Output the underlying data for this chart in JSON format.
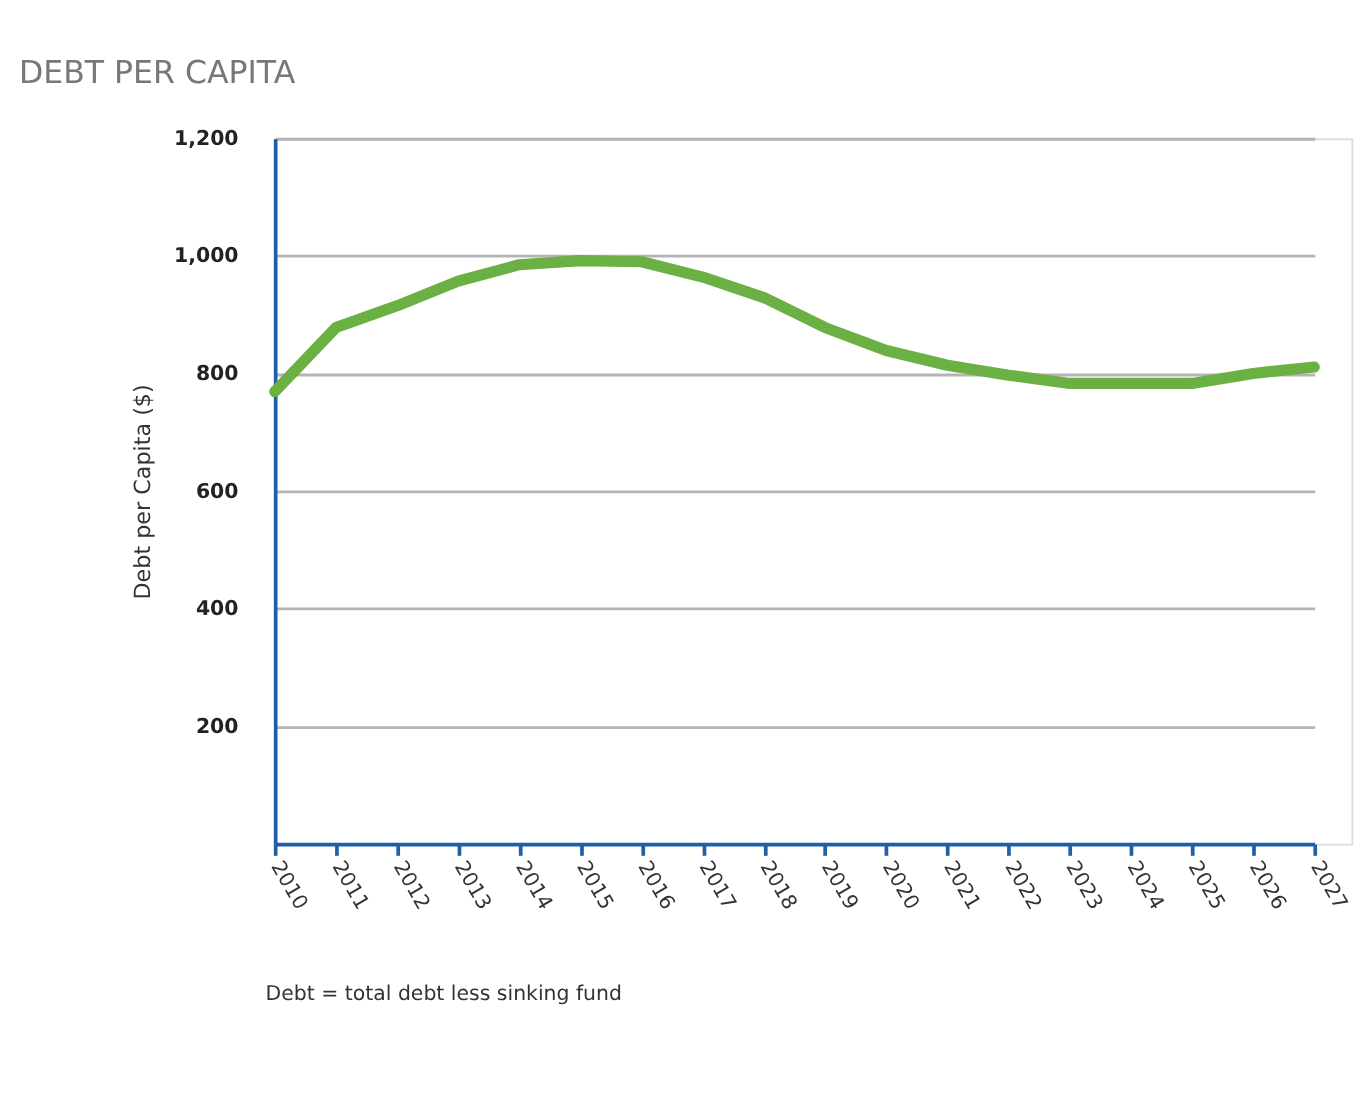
{
  "chart_data": {
    "type": "line",
    "title": "DEBT PER CAPITA",
    "ylabel": "Debt per Capita ($)",
    "categories": [
      "2010",
      "2011",
      "2012",
      "2013",
      "2014",
      "2015",
      "2016",
      "2017",
      "2018",
      "2019",
      "2020",
      "2021",
      "2022",
      "2023",
      "2024",
      "2025",
      "2026",
      "2027"
    ],
    "series": [
      {
        "color": "#6ab042",
        "values": [
          769,
          878,
          915,
          957,
          985,
          992,
          990,
          964,
          929,
          878,
          839,
          814,
          797,
          783,
          783,
          783,
          800,
          811
        ]
      }
    ],
    "ylim": [
      0,
      1200
    ],
    "yticks": [
      {
        "value": 200,
        "label": "200"
      },
      {
        "value": 400,
        "label": "400"
      },
      {
        "value": 600,
        "label": "600"
      },
      {
        "value": 800,
        "label": "800"
      },
      {
        "value": 1000,
        "label": "1,000"
      },
      {
        "value": 1200,
        "label": "1,200"
      }
    ],
    "grid": "y",
    "marker": "none",
    "line_style": "solid",
    "annotations": [
      "Debt = total debt less sinking fund"
    ]
  }
}
